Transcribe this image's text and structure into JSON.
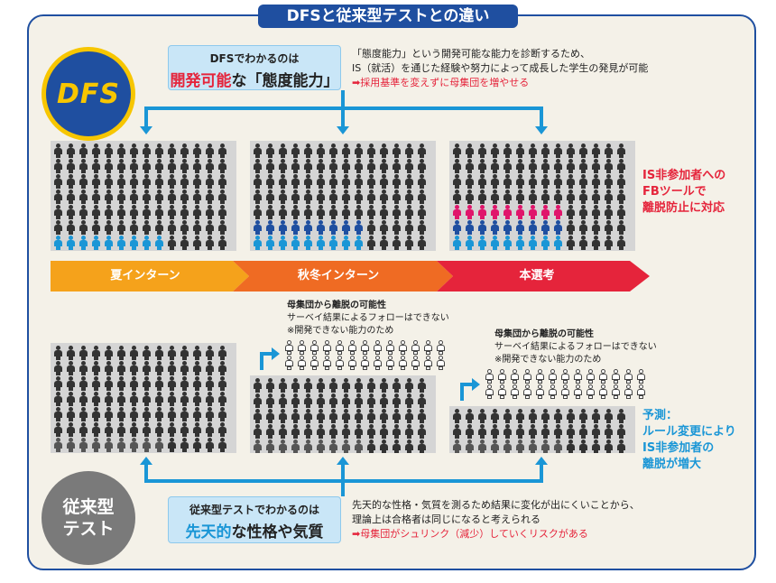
{
  "title": "DFSと従来型テストとの違い",
  "dfs": {
    "logo": "DFS",
    "box_line1": "DFSでわかるのは",
    "box_highlight": "開発可能",
    "box_rest": "な「態度能力」",
    "desc": [
      "「態度能力」という開発可能な能力を診断するため、",
      "IS（就活）を通じた経験や努力によって成長した学生の発見が可能"
    ],
    "desc_arrow": "➡採用基準を変えずに母集団を増やせる",
    "side_note": [
      "IS非参加者への",
      "FBツールで",
      "離脱防止に対応"
    ]
  },
  "phases": [
    "夏インターン",
    "秋冬インターン",
    "本選考"
  ],
  "traditional": {
    "logo": "従来型\nテスト",
    "note_bold": "母集団から離脱の可能性",
    "note_lines": [
      "サーベイ結果によるフォローはできない",
      "※開発できない能力のため"
    ],
    "box_line1": "従来型テストでわかるのは",
    "box_highlight": "先天的",
    "box_rest": "な性格や気質",
    "desc": [
      "先天的な性格・気質を測るため結果に変化が出にくいことから、",
      "理論上は合格者は同じになると考えられる"
    ],
    "desc_arrow": "➡母集団がシュリンク（減少）していくリスクがある",
    "side_note": [
      "予測：",
      "ルール変更により",
      "IS非参加者の",
      "離脱が増大"
    ]
  },
  "colors": {
    "brand_blue": "#1f4fa0",
    "accent_cyan": "#1a96d6",
    "highlight_red": "#e5243b",
    "phase_summer": "#f5a21b",
    "phase_autumn": "#ef6b23",
    "phase_main": "#e5243b"
  }
}
